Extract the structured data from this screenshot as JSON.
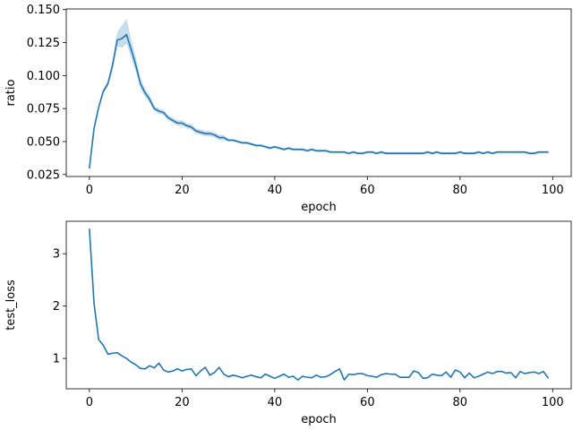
{
  "colors": {
    "line": "#1f77b4",
    "band": "#1f77b4"
  },
  "chart_data": [
    {
      "type": "line",
      "xlabel": "epoch",
      "ylabel": "ratio",
      "xlim": [
        -5,
        104
      ],
      "ylim": [
        0.0235,
        0.1505
      ],
      "xticks": [
        0,
        20,
        40,
        60,
        80,
        100
      ],
      "yticks": [
        0.025,
        0.05,
        0.075,
        0.1,
        0.125,
        0.15
      ],
      "ytick_labels": [
        "0.025",
        "0.050",
        "0.075",
        "0.100",
        "0.125",
        "0.150"
      ],
      "series": [
        {
          "x": [
            0,
            1,
            2,
            3,
            4,
            5,
            6,
            7,
            8,
            9,
            10,
            11,
            12,
            13,
            14,
            15,
            16,
            17,
            18,
            19,
            20,
            21,
            22,
            23,
            24,
            25,
            26,
            27,
            28,
            29,
            30,
            31,
            32,
            33,
            34,
            35,
            36,
            37,
            38,
            39,
            40,
            41,
            42,
            43,
            44,
            45,
            46,
            47,
            48,
            49,
            50,
            51,
            52,
            53,
            54,
            55,
            56,
            57,
            58,
            59,
            60,
            61,
            62,
            63,
            64,
            65,
            66,
            67,
            68,
            69,
            70,
            71,
            72,
            73,
            74,
            75,
            76,
            77,
            78,
            79,
            80,
            81,
            82,
            83,
            84,
            85,
            86,
            87,
            88,
            89,
            90,
            91,
            92,
            93,
            94,
            95,
            96,
            97,
            98,
            99
          ],
          "y": [
            0.03,
            0.06,
            0.076,
            0.088,
            0.094,
            0.108,
            0.127,
            0.128,
            0.131,
            0.12,
            0.108,
            0.094,
            0.087,
            0.082,
            0.075,
            0.073,
            0.072,
            0.068,
            0.066,
            0.064,
            0.064,
            0.062,
            0.061,
            0.058,
            0.057,
            0.056,
            0.056,
            0.055,
            0.053,
            0.053,
            0.051,
            0.051,
            0.05,
            0.049,
            0.049,
            0.048,
            0.047,
            0.047,
            0.046,
            0.045,
            0.046,
            0.045,
            0.044,
            0.045,
            0.044,
            0.044,
            0.044,
            0.043,
            0.044,
            0.043,
            0.043,
            0.043,
            0.042,
            0.042,
            0.042,
            0.042,
            0.041,
            0.042,
            0.041,
            0.041,
            0.042,
            0.042,
            0.041,
            0.042,
            0.041,
            0.041,
            0.041,
            0.041,
            0.041,
            0.041,
            0.041,
            0.041,
            0.041,
            0.042,
            0.041,
            0.042,
            0.041,
            0.041,
            0.041,
            0.041,
            0.042,
            0.041,
            0.041,
            0.041,
            0.042,
            0.041,
            0.042,
            0.041,
            0.042,
            0.042,
            0.042,
            0.042,
            0.042,
            0.042,
            0.042,
            0.041,
            0.041,
            0.042,
            0.042,
            0.042
          ],
          "ci_lower": [
            0.029,
            0.058,
            0.074,
            0.086,
            0.092,
            0.104,
            0.122,
            0.121,
            0.124,
            0.114,
            0.103,
            0.09,
            0.084,
            0.079,
            0.073,
            0.071,
            0.07,
            0.066,
            0.064,
            0.062,
            0.062,
            0.06,
            0.059,
            0.056,
            0.055,
            0.054,
            0.054,
            0.053,
            0.051,
            0.051,
            0.05,
            0.05,
            0.049,
            0.048,
            0.048,
            0.047,
            0.046,
            0.046,
            0.045,
            0.044,
            0.045,
            0.044,
            0.043,
            0.044,
            0.043,
            0.043,
            0.043,
            0.042,
            0.043,
            0.042,
            0.042,
            0.042,
            0.041,
            0.041,
            0.041,
            0.041,
            0.04,
            0.041,
            0.04,
            0.04,
            0.041,
            0.041,
            0.04,
            0.041,
            0.04,
            0.04,
            0.04,
            0.04,
            0.04,
            0.04,
            0.04,
            0.04,
            0.04,
            0.041,
            0.04,
            0.041,
            0.04,
            0.04,
            0.04,
            0.04,
            0.041,
            0.04,
            0.04,
            0.04,
            0.041,
            0.04,
            0.041,
            0.04,
            0.041,
            0.041,
            0.041,
            0.041,
            0.041,
            0.041,
            0.041,
            0.04,
            0.04,
            0.041,
            0.041,
            0.041
          ],
          "ci_upper": [
            0.031,
            0.062,
            0.078,
            0.09,
            0.096,
            0.112,
            0.133,
            0.138,
            0.143,
            0.128,
            0.114,
            0.098,
            0.09,
            0.085,
            0.077,
            0.075,
            0.074,
            0.07,
            0.068,
            0.066,
            0.066,
            0.064,
            0.063,
            0.06,
            0.059,
            0.058,
            0.058,
            0.057,
            0.055,
            0.055,
            0.052,
            0.052,
            0.051,
            0.05,
            0.05,
            0.049,
            0.048,
            0.048,
            0.047,
            0.046,
            0.047,
            0.046,
            0.045,
            0.046,
            0.045,
            0.045,
            0.045,
            0.044,
            0.045,
            0.044,
            0.044,
            0.044,
            0.043,
            0.043,
            0.043,
            0.043,
            0.042,
            0.043,
            0.042,
            0.042,
            0.043,
            0.043,
            0.042,
            0.043,
            0.042,
            0.042,
            0.042,
            0.042,
            0.042,
            0.042,
            0.042,
            0.042,
            0.042,
            0.043,
            0.042,
            0.043,
            0.042,
            0.042,
            0.042,
            0.042,
            0.043,
            0.042,
            0.042,
            0.042,
            0.043,
            0.042,
            0.043,
            0.042,
            0.043,
            0.043,
            0.043,
            0.043,
            0.043,
            0.043,
            0.043,
            0.042,
            0.042,
            0.043,
            0.043,
            0.043
          ]
        }
      ]
    },
    {
      "type": "line",
      "xlabel": "epoch",
      "ylabel": "test_loss",
      "xlim": [
        -5,
        104
      ],
      "ylim": [
        0.42,
        3.62
      ],
      "xticks": [
        0,
        20,
        40,
        60,
        80,
        100
      ],
      "yticks": [
        1,
        2,
        3
      ],
      "ytick_labels": [
        "1",
        "2",
        "3"
      ],
      "series": [
        {
          "x": [
            0,
            1,
            2,
            3,
            4,
            5,
            6,
            7,
            8,
            9,
            10,
            11,
            12,
            13,
            14,
            15,
            16,
            17,
            18,
            19,
            20,
            21,
            22,
            23,
            24,
            25,
            26,
            27,
            28,
            29,
            30,
            31,
            32,
            33,
            34,
            35,
            36,
            37,
            38,
            39,
            40,
            41,
            42,
            43,
            44,
            45,
            46,
            47,
            48,
            49,
            50,
            51,
            52,
            53,
            54,
            55,
            56,
            57,
            58,
            59,
            60,
            61,
            62,
            63,
            64,
            65,
            66,
            67,
            68,
            69,
            70,
            71,
            72,
            73,
            74,
            75,
            76,
            77,
            78,
            79,
            80,
            81,
            82,
            83,
            84,
            85,
            86,
            87,
            88,
            89,
            90,
            91,
            92,
            93,
            94,
            95,
            96,
            97,
            98,
            99
          ],
          "y": [
            3.47,
            2.05,
            1.36,
            1.25,
            1.08,
            1.1,
            1.11,
            1.05,
            1.0,
            0.93,
            0.88,
            0.81,
            0.8,
            0.86,
            0.82,
            0.91,
            0.78,
            0.74,
            0.76,
            0.8,
            0.76,
            0.79,
            0.8,
            0.67,
            0.76,
            0.83,
            0.68,
            0.73,
            0.83,
            0.7,
            0.65,
            0.68,
            0.66,
            0.63,
            0.66,
            0.68,
            0.65,
            0.63,
            0.7,
            0.66,
            0.62,
            0.66,
            0.7,
            0.64,
            0.66,
            0.59,
            0.66,
            0.64,
            0.63,
            0.68,
            0.64,
            0.65,
            0.69,
            0.75,
            0.8,
            0.59,
            0.7,
            0.69,
            0.71,
            0.71,
            0.67,
            0.66,
            0.64,
            0.69,
            0.71,
            0.7,
            0.7,
            0.64,
            0.64,
            0.64,
            0.76,
            0.73,
            0.62,
            0.63,
            0.7,
            0.68,
            0.67,
            0.74,
            0.64,
            0.78,
            0.74,
            0.63,
            0.72,
            0.63,
            0.66,
            0.7,
            0.74,
            0.71,
            0.75,
            0.75,
            0.72,
            0.73,
            0.63,
            0.75,
            0.71,
            0.73,
            0.74,
            0.71,
            0.75,
            0.63
          ]
        }
      ]
    }
  ]
}
